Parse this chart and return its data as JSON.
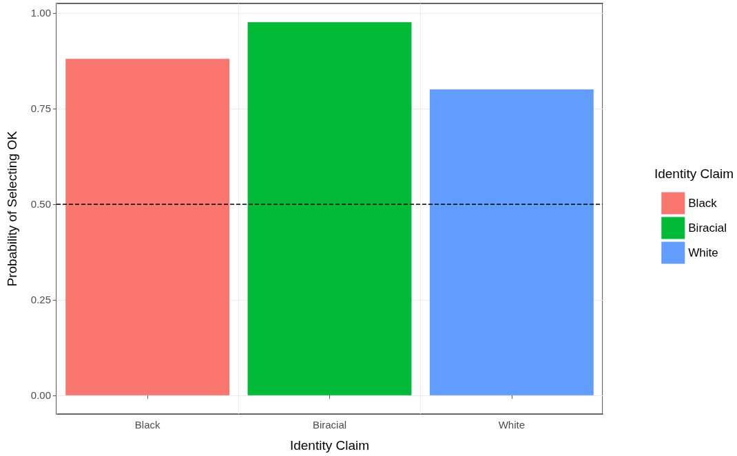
{
  "chart_data": {
    "type": "bar",
    "xlabel": "Identity Claim",
    "ylabel": "Probability of Selecting OK",
    "legend_title": "Identity Claim",
    "categories": [
      "Black",
      "Biracial",
      "White"
    ],
    "series": [
      {
        "name": "Black",
        "color": "#f8766d",
        "values": [
          0.88,
          null,
          null
        ]
      },
      {
        "name": "Biracial",
        "color": "#00ba38",
        "values": [
          null,
          0.976,
          null
        ]
      },
      {
        "name": "White",
        "color": "#619cff",
        "values": [
          null,
          null,
          0.8
        ]
      }
    ],
    "ylim": [
      -0.049,
      1.025
    ],
    "yticks": [
      {
        "value": 0,
        "label": "0.00"
      },
      {
        "value": 0.25,
        "label": "0.25"
      },
      {
        "value": 0.5,
        "label": "0.50"
      },
      {
        "value": 0.75,
        "label": "0.75"
      },
      {
        "value": 1,
        "label": "1.00"
      }
    ],
    "ref_lines": [
      {
        "axis": "y",
        "value": 0.5,
        "color": "#000000",
        "line_style": "dashed"
      }
    ],
    "grid": true,
    "legend": "right"
  }
}
